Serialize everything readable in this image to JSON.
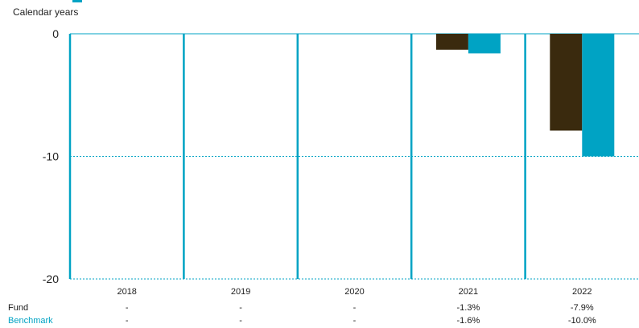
{
  "chart_data": {
    "type": "bar",
    "subtitle": "Calendar years",
    "categories": [
      "2018",
      "2019",
      "2020",
      "2021",
      "2022"
    ],
    "series": [
      {
        "name": "Fund",
        "color": "#3a2a0e",
        "values": [
          null,
          null,
          null,
          -1.3,
          -7.9
        ]
      },
      {
        "name": "Benchmark",
        "color": "#00a3c4",
        "values": [
          null,
          null,
          null,
          -1.6,
          -10.0
        ]
      }
    ],
    "ylim": [
      -20,
      0
    ],
    "yticks": [
      "0",
      "-10",
      "-20"
    ],
    "ytick_values": [
      0,
      -10,
      -20
    ],
    "grid": true,
    "table": {
      "rows": [
        {
          "label": "Fund",
          "label_color": "#1a1a1a",
          "cells": [
            "-",
            "-",
            "-",
            "-1.3%",
            "-7.9%"
          ]
        },
        {
          "label": "Benchmark",
          "label_color": "#00a3c4",
          "cells": [
            "-",
            "-",
            "-",
            "-1.6%",
            "-10.0%"
          ]
        }
      ]
    }
  }
}
